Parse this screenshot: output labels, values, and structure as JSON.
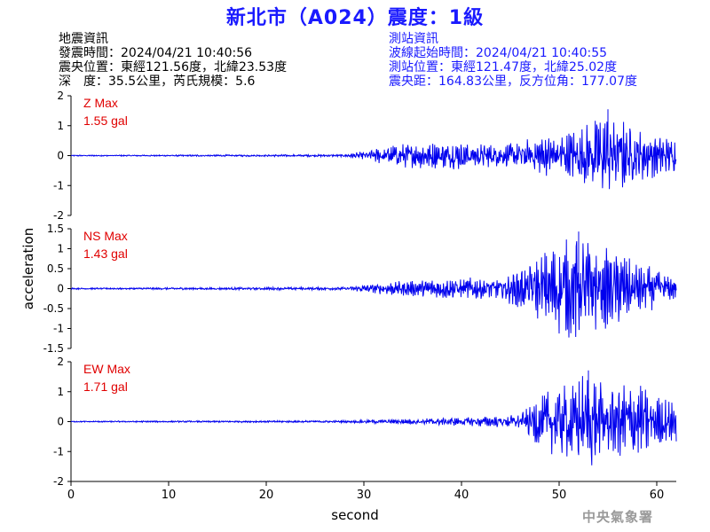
{
  "title": "新北市（A024）震度：1級",
  "earthquake_info": {
    "heading": "地震資訊",
    "time": "發震時間：2024/04/21 10:40:56",
    "epicenter": "震央位置：東經121.56度，北緯23.53度",
    "depth_magnitude": "深　度：35.5公里，芮氏規模：5.6"
  },
  "station_info": {
    "heading": "測站資訊",
    "wave_start": "波線起始時間：2024/04/21 10:40:55",
    "station_location": "測站位置：東經121.47度，北緯25.02度",
    "distance": "震央距：164.83公里，反方位角：177.07度"
  },
  "agency": "中央氣象署",
  "colors": {
    "title": "#1a1aff",
    "trace": "#0000ee",
    "max_label": "#e00000",
    "station_text": "#1a1aff"
  },
  "chart_data": {
    "type": "line",
    "xlabel": "second",
    "ylabel": "acceleration",
    "xlim": [
      0,
      62
    ],
    "xticks": [
      0,
      10,
      20,
      30,
      40,
      50,
      60
    ],
    "series": [
      {
        "name": "Z",
        "max_label": "Z Max",
        "max_value": "1.55 gal",
        "ylim": [
          -2,
          2
        ],
        "yticks": [
          -2,
          -1,
          0,
          1,
          2
        ],
        "envelope_x": [
          0,
          28,
          30,
          33,
          36,
          40,
          44,
          47,
          52,
          55,
          58,
          62
        ],
        "envelope_y": [
          0.02,
          0.04,
          0.15,
          0.4,
          0.45,
          0.5,
          0.35,
          0.6,
          0.9,
          1.55,
          0.9,
          0.6
        ]
      },
      {
        "name": "NS",
        "max_label": "NS Max",
        "max_value": "1.43 gal",
        "ylim": [
          -1.5,
          1.5
        ],
        "yticks": [
          -1.5,
          -1,
          -0.5,
          0,
          0.5,
          1,
          1.5
        ],
        "envelope_x": [
          0,
          28,
          30,
          33,
          36,
          40,
          44,
          47,
          50,
          52,
          55,
          58,
          62
        ],
        "envelope_y": [
          0.02,
          0.04,
          0.1,
          0.18,
          0.22,
          0.3,
          0.25,
          0.7,
          1.2,
          1.43,
          1.1,
          0.7,
          0.3
        ]
      },
      {
        "name": "EW",
        "max_label": "EW Max",
        "max_value": "1.71 gal",
        "ylim": [
          -2,
          2
        ],
        "yticks": [
          -2,
          -1,
          0,
          1,
          2
        ],
        "envelope_x": [
          0,
          28,
          30,
          35,
          40,
          44,
          46,
          48,
          50,
          53,
          55,
          57,
          60,
          62
        ],
        "envelope_y": [
          0.02,
          0.04,
          0.06,
          0.1,
          0.15,
          0.2,
          0.25,
          1.0,
          1.2,
          1.71,
          1.3,
          1.5,
          0.9,
          0.7
        ]
      }
    ]
  }
}
